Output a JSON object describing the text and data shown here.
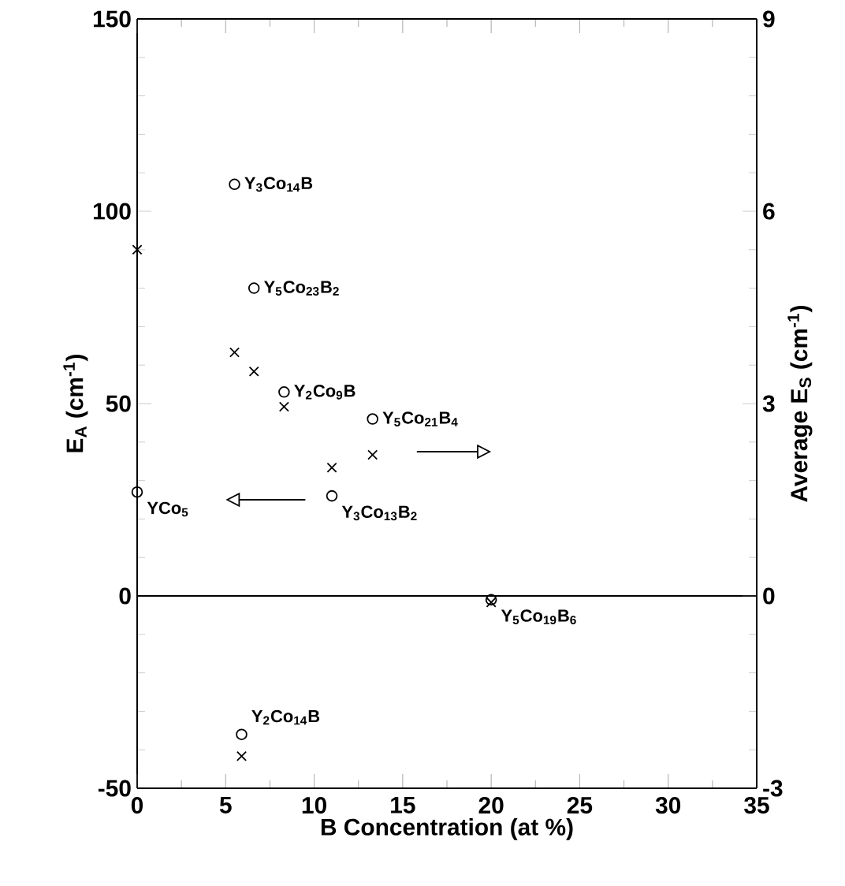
{
  "chart_data": {
    "type": "scatter",
    "xlabel": "B  Concentration  (at %)",
    "ylabel": "E$_{A}$ (cm$^{-1}$)",
    "y2label": "Average E$_{S}$ (cm$^{-1}$)",
    "xlim": [
      0,
      35
    ],
    "xticks": [
      0,
      5,
      10,
      15,
      20,
      25,
      30,
      35
    ],
    "ylim": [
      -50,
      150
    ],
    "yticks": [
      -50,
      0,
      50,
      100,
      150
    ],
    "y2lim": [
      -3,
      9
    ],
    "y2ticks": [
      -3,
      0,
      3,
      6,
      9
    ],
    "series": [
      {
        "color": "#000000",
        "marker": "circle",
        "x": [
          0,
          5.5,
          6.6,
          8.3,
          13.3,
          11.0,
          20,
          5.9
        ],
        "values": [
          27,
          107,
          80,
          53,
          46,
          26,
          -1,
          -36
        ]
      },
      {
        "color": "#000000",
        "marker": "cross",
        "axis": "y2",
        "x": [
          0,
          5.5,
          6.6,
          8.3,
          11.0,
          13.3,
          20,
          5.9
        ],
        "values": [
          5.4,
          3.8,
          3.5,
          2.95,
          2.0,
          2.2,
          -0.1,
          -2.5
        ]
      }
    ],
    "ref_lines": [
      {
        "axis": "y",
        "value": 0,
        "color": "#000000"
      }
    ],
    "annotations": [
      {
        "text": "YCo$_{5}$",
        "x": 0,
        "y": 27
      },
      {
        "text": "Y$_{3}$Co$_{14}$B",
        "x": 5.5,
        "y": 107
      },
      {
        "text": "Y$_{5}$Co$_{23}$B$_{2}$",
        "x": 6.6,
        "y": 80
      },
      {
        "text": "Y$_{2}$Co$_{9}$B",
        "x": 8.3,
        "y": 53
      },
      {
        "text": "Y$_{5}$Co$_{21}$B$_{4}$",
        "x": 13.3,
        "y": 46
      },
      {
        "text": "Y$_{3}$Co$_{13}$B$_{2}$",
        "x": 11.0,
        "y": 26
      },
      {
        "text": "Y$_{5}$Co$_{19}$B$_{6}$",
        "x": 20,
        "y": -1
      },
      {
        "text": "Y$_{2}$Co$_{14}$B",
        "x": 5.9,
        "y": -36
      }
    ]
  }
}
